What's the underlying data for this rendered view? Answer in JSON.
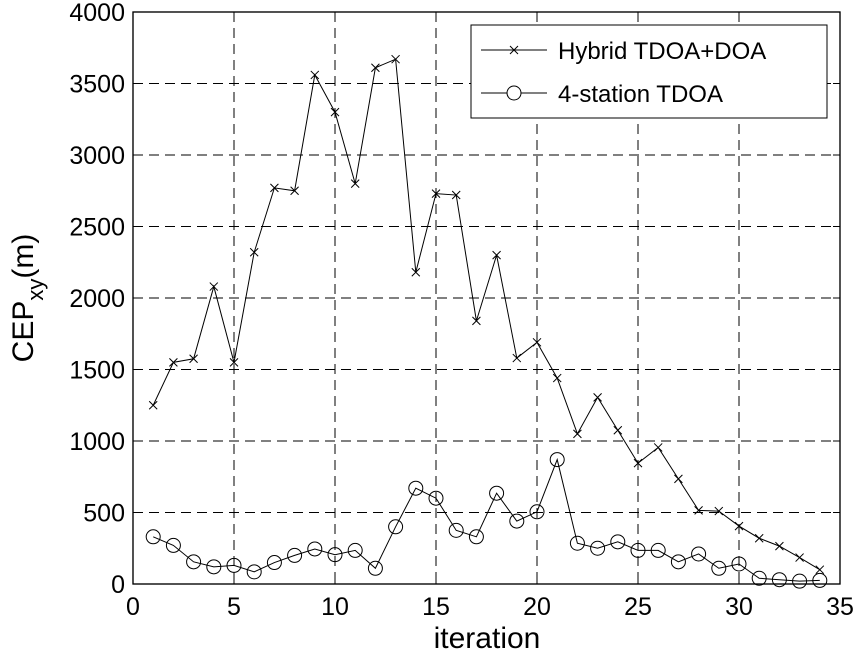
{
  "chart_data": {
    "type": "line",
    "xlabel": "iteration",
    "ylabel": "CEP",
    "ylabel_subscript": "xy",
    "ylabel_suffix": "(m)",
    "xlim": [
      0,
      35
    ],
    "ylim": [
      0,
      4000
    ],
    "xticks": [
      0,
      5,
      10,
      15,
      20,
      25,
      30,
      35
    ],
    "yticks": [
      0,
      500,
      1000,
      1500,
      2000,
      2500,
      3000,
      3500,
      4000
    ],
    "grid": true,
    "legend_position": "top-right",
    "series": [
      {
        "name": "Hybrid TDOA+DOA",
        "marker": "x",
        "color": "#000000",
        "x": [
          1,
          2,
          3,
          4,
          5,
          6,
          7,
          8,
          9,
          10,
          11,
          12,
          13,
          14,
          15,
          16,
          17,
          18,
          19,
          20,
          21,
          22,
          23,
          24,
          25,
          26,
          27,
          28,
          29,
          30,
          31,
          32,
          33,
          34
        ],
        "y": [
          1250,
          1550,
          1575,
          2080,
          1550,
          2320,
          2770,
          2750,
          3560,
          3300,
          2800,
          3610,
          3670,
          2180,
          2730,
          2720,
          1840,
          2300,
          1580,
          1690,
          1440,
          1050,
          1305,
          1075,
          845,
          955,
          735,
          515,
          510,
          405,
          320,
          265,
          185,
          100
        ]
      },
      {
        "name": "4-station TDOA",
        "marker": "o",
        "color": "#000000",
        "x": [
          1,
          2,
          3,
          4,
          5,
          6,
          7,
          8,
          9,
          10,
          11,
          12,
          13,
          14,
          15,
          16,
          17,
          18,
          19,
          20,
          21,
          22,
          23,
          24,
          25,
          26,
          27,
          28,
          29,
          30,
          31,
          32,
          33,
          34
        ],
        "y": [
          330,
          270,
          155,
          120,
          130,
          85,
          150,
          200,
          245,
          205,
          235,
          110,
          400,
          670,
          600,
          375,
          330,
          635,
          440,
          505,
          870,
          285,
          250,
          295,
          235,
          235,
          155,
          210,
          110,
          140,
          40,
          30,
          20,
          25
        ]
      }
    ]
  }
}
